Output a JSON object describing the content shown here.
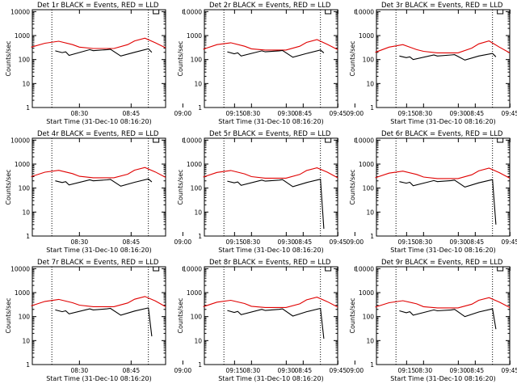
{
  "colors": {
    "events": "#000000",
    "lld": "#e00000",
    "frame": "#000000",
    "background": "#ffffff"
  },
  "chart_data": {
    "type": "line",
    "y_scale": "log",
    "ylim": [
      1,
      12000
    ],
    "y_ticks": [
      1,
      10,
      100,
      1000,
      10000
    ],
    "y_tick_labels": [
      "1",
      "10",
      "100",
      "1000",
      "10000"
    ],
    "x_range": [
      "08:16:20",
      "08:55:00"
    ],
    "x_ticks": [
      "08:30",
      "08:45",
      "09:00",
      "09:15",
      "09:30",
      "09:45"
    ],
    "x_tick_labels": [
      "08:30",
      "08:45",
      "09:00",
      "09:15",
      "09:30",
      "09:45"
    ],
    "dotted_vlines": [
      "08:22",
      "08:50"
    ],
    "ylabel": "Counts/sec",
    "xlabel": "Start Time (31-Dec-10 08:16:20)",
    "panels": [
      {
        "title": "Det 1r BLACK = Events, RED = LLD",
        "series": [
          {
            "name": "RED = LLD",
            "x": [
              "08:16",
              "08:20",
              "08:24",
              "08:28",
              "08:30",
              "08:34",
              "08:40",
              "08:44",
              "08:46",
              "08:49",
              "08:52",
              "08:55"
            ],
            "y": [
              330,
              480,
              580,
              420,
              330,
              290,
              290,
              420,
              600,
              780,
              500,
              310
            ]
          },
          {
            "name": "BLACK = Events",
            "x": [
              "08:23",
              "08:25",
              "08:26",
              "08:27",
              "08:33",
              "08:34",
              "08:38",
              "08:39",
              "08:42",
              "08:46",
              "08:50",
              "08:51"
            ],
            "y": [
              230,
              195,
              210,
              150,
              260,
              235,
              260,
              270,
              140,
              200,
              280,
              200
            ]
          }
        ]
      },
      {
        "title": "Det 2r BLACK = Events, RED = LLD",
        "series": [
          {
            "name": "RED = LLD",
            "x": [
              "08:16",
              "08:20",
              "08:24",
              "08:28",
              "08:30",
              "08:34",
              "08:40",
              "08:44",
              "08:46",
              "08:49",
              "08:52",
              "08:55"
            ],
            "y": [
              270,
              420,
              500,
              360,
              280,
              250,
              250,
              360,
              520,
              680,
              430,
              260
            ]
          },
          {
            "name": "BLACK = Events",
            "x": [
              "08:23",
              "08:25",
              "08:26",
              "08:27",
              "08:33",
              "08:34",
              "08:38",
              "08:39",
              "08:42",
              "08:46",
              "08:50",
              "08:51"
            ],
            "y": [
              210,
              175,
              190,
              140,
              230,
              210,
              230,
              240,
              125,
              180,
              250,
              190
            ]
          }
        ]
      },
      {
        "title": "Det 3r BLACK = Events, RED = LLD",
        "series": [
          {
            "name": "RED = LLD",
            "x": [
              "08:16",
              "08:20",
              "08:24",
              "08:28",
              "08:30",
              "08:34",
              "08:40",
              "08:44",
              "08:46",
              "08:49",
              "08:52",
              "08:55"
            ],
            "y": [
              200,
              330,
              420,
              260,
              220,
              190,
              190,
              300,
              450,
              600,
              330,
              190
            ]
          },
          {
            "name": "BLACK = Events",
            "x": [
              "08:23",
              "08:25",
              "08:26",
              "08:27",
              "08:33",
              "08:34",
              "08:38",
              "08:39",
              "08:42",
              "08:46",
              "08:50",
              "08:51"
            ],
            "y": [
              140,
              120,
              130,
              100,
              155,
              140,
              155,
              160,
              95,
              140,
              180,
              130
            ]
          }
        ]
      },
      {
        "title": "Det 4r BLACK = Events, RED = LLD",
        "series": [
          {
            "name": "RED = LLD",
            "x": [
              "08:16",
              "08:20",
              "08:24",
              "08:28",
              "08:30",
              "08:34",
              "08:40",
              "08:44",
              "08:46",
              "08:49",
              "08:52",
              "08:55"
            ],
            "y": [
              300,
              460,
              550,
              400,
              310,
              270,
              270,
              380,
              560,
              720,
              470,
              280
            ]
          },
          {
            "name": "BLACK = Events",
            "x": [
              "08:23",
              "08:25",
              "08:26",
              "08:27",
              "08:33",
              "08:34",
              "08:38",
              "08:39",
              "08:42",
              "08:46",
              "08:50",
              "08:51"
            ],
            "y": [
              200,
              170,
              185,
              135,
              220,
              200,
              220,
              230,
              120,
              175,
              240,
              180
            ]
          }
        ]
      },
      {
        "title": "Det 5r BLACK = Events, RED = LLD",
        "series": [
          {
            "name": "RED = LLD",
            "x": [
              "08:16",
              "08:20",
              "08:24",
              "08:28",
              "08:30",
              "08:34",
              "08:40",
              "08:44",
              "08:46",
              "08:49",
              "08:52",
              "08:55"
            ],
            "y": [
              290,
              450,
              540,
              390,
              300,
              260,
              260,
              370,
              540,
              700,
              460,
              270
            ]
          },
          {
            "name": "BLACK = Events",
            "x": [
              "08:23",
              "08:25",
              "08:26",
              "08:27",
              "08:33",
              "08:34",
              "08:38",
              "08:39",
              "08:42",
              "08:46",
              "08:50",
              "08:51"
            ],
            "y": [
              195,
              165,
              180,
              130,
              215,
              195,
              215,
              225,
              115,
              170,
              235,
              2
            ]
          }
        ]
      },
      {
        "title": "Det 6r BLACK = Events, RED = LLD",
        "series": [
          {
            "name": "RED = LLD",
            "x": [
              "08:16",
              "08:20",
              "08:24",
              "08:28",
              "08:30",
              "08:34",
              "08:40",
              "08:44",
              "08:46",
              "08:49",
              "08:52",
              "08:55"
            ],
            "y": [
              270,
              420,
              510,
              370,
              290,
              250,
              250,
              360,
              520,
              680,
              440,
              260
            ]
          },
          {
            "name": "BLACK = Events",
            "x": [
              "08:23",
              "08:25",
              "08:26",
              "08:27",
              "08:33",
              "08:34",
              "08:38",
              "08:39",
              "08:42",
              "08:46",
              "08:50",
              "08:51"
            ],
            "y": [
              185,
              160,
              175,
              125,
              205,
              185,
              205,
              215,
              110,
              165,
              225,
              3
            ]
          }
        ]
      },
      {
        "title": "Det 7r BLACK = Events, RED = LLD",
        "series": [
          {
            "name": "RED = LLD",
            "x": [
              "08:16",
              "08:20",
              "08:24",
              "08:28",
              "08:30",
              "08:34",
              "08:40",
              "08:44",
              "08:46",
              "08:49",
              "08:52",
              "08:55"
            ],
            "y": [
              280,
              430,
              520,
              380,
              300,
              260,
              260,
              370,
              530,
              690,
              450,
              260
            ]
          },
          {
            "name": "BLACK = Events",
            "x": [
              "08:23",
              "08:25",
              "08:26",
              "08:27",
              "08:33",
              "08:34",
              "08:38",
              "08:39",
              "08:42",
              "08:46",
              "08:50",
              "08:51"
            ],
            "y": [
              190,
              160,
              175,
              130,
              210,
              190,
              210,
              220,
              115,
              170,
              230,
              15
            ]
          }
        ]
      },
      {
        "title": "Det 8r BLACK = Events, RED = LLD",
        "series": [
          {
            "name": "RED = LLD",
            "x": [
              "08:16",
              "08:20",
              "08:24",
              "08:28",
              "08:30",
              "08:34",
              "08:40",
              "08:44",
              "08:46",
              "08:49",
              "08:52",
              "08:55"
            ],
            "y": [
              260,
              400,
              480,
              350,
              270,
              240,
              240,
              340,
              500,
              650,
              420,
              250
            ]
          },
          {
            "name": "BLACK = Events",
            "x": [
              "08:23",
              "08:25",
              "08:26",
              "08:27",
              "08:33",
              "08:34",
              "08:38",
              "08:39",
              "08:42",
              "08:46",
              "08:50",
              "08:51"
            ],
            "y": [
              180,
              150,
              165,
              120,
              200,
              180,
              200,
              210,
              105,
              160,
              220,
              12
            ]
          }
        ]
      },
      {
        "title": "Det 9r BLACK = Events, RED = LLD",
        "series": [
          {
            "name": "RED = LLD",
            "x": [
              "08:16",
              "08:20",
              "08:24",
              "08:28",
              "08:30",
              "08:34",
              "08:40",
              "08:44",
              "08:46",
              "08:49",
              "08:52",
              "08:55"
            ],
            "y": [
              250,
              380,
              460,
              340,
              260,
              230,
              230,
              330,
              480,
              620,
              400,
              240
            ]
          },
          {
            "name": "BLACK = Events",
            "x": [
              "08:23",
              "08:25",
              "08:26",
              "08:27",
              "08:33",
              "08:34",
              "08:38",
              "08:39",
              "08:42",
              "08:46",
              "08:50",
              "08:51"
            ],
            "y": [
              175,
              145,
              160,
              115,
              190,
              175,
              190,
              200,
              100,
              155,
              210,
              30
            ]
          }
        ]
      }
    ]
  }
}
